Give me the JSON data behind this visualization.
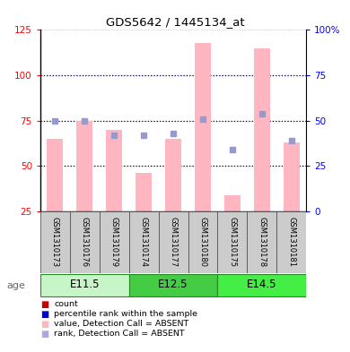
{
  "title": "GDS5642 / 1445134_at",
  "samples": [
    "GSM1310173",
    "GSM1310176",
    "GSM1310179",
    "GSM1310174",
    "GSM1310177",
    "GSM1310180",
    "GSM1310175",
    "GSM1310178",
    "GSM1310181"
  ],
  "bar_values": [
    65,
    75,
    70,
    46,
    65,
    118,
    34,
    115,
    63
  ],
  "rank_values": [
    75,
    75,
    67,
    67,
    68,
    76,
    59,
    79,
    64
  ],
  "groups": [
    {
      "label": "E11.5",
      "start": 0,
      "end": 3,
      "color_light": "#C8F5C8",
      "color_dark": "#44CC44"
    },
    {
      "label": "E12.5",
      "start": 3,
      "end": 6,
      "color_light": "#44CC44",
      "color_dark": "#44CC44"
    },
    {
      "label": "E14.5",
      "start": 6,
      "end": 9,
      "color_light": "#C8F5C8",
      "color_dark": "#44CC44"
    }
  ],
  "ylim_left": [
    25,
    125
  ],
  "ylim_right": [
    0,
    100
  ],
  "yticks_left": [
    25,
    50,
    75,
    100,
    125
  ],
  "ytick_labels_left": [
    "25",
    "50",
    "75",
    "100",
    "125"
  ],
  "ytick_labels_right": [
    "0",
    "25",
    "50",
    "75",
    "100%"
  ],
  "bar_color": "#FFB6C1",
  "rank_color": "#9999CC",
  "grid_dotted_vals": [
    50,
    75,
    100
  ],
  "bg_color": "#D3D3D3",
  "legend_items": [
    {
      "label": "count",
      "color": "#CC0000"
    },
    {
      "label": "percentile rank within the sample",
      "color": "#0000CC"
    },
    {
      "label": "value, Detection Call = ABSENT",
      "color": "#FFB6C1"
    },
    {
      "label": "rank, Detection Call = ABSENT",
      "color": "#AAAADD"
    }
  ]
}
